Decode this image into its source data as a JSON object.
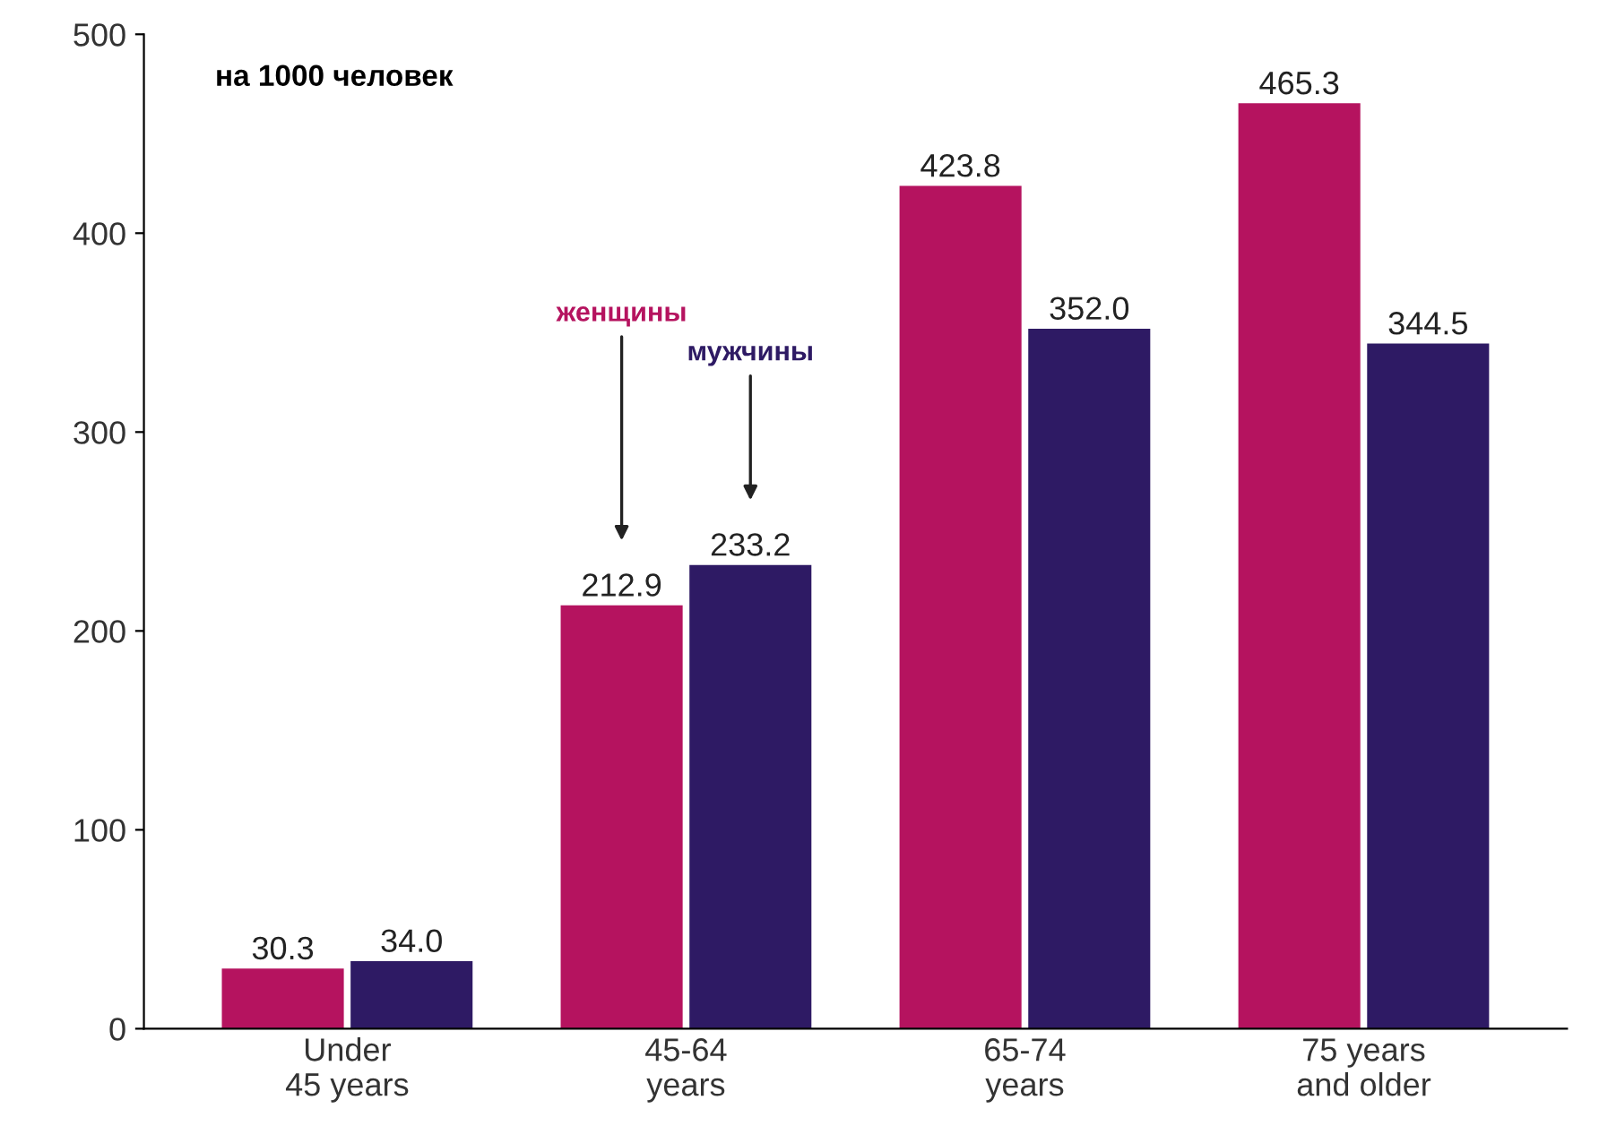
{
  "chart_data": {
    "type": "bar",
    "categories": [
      "Under\n45 years",
      "45-64\nyears",
      "65-74\nyears",
      "75 years\nand older"
    ],
    "series": [
      {
        "name": "женщины",
        "color": "#b5135f",
        "values": [
          30.3,
          212.9,
          423.8,
          465.3
        ],
        "value_labels": [
          "30.3",
          "212.9",
          "423.8",
          "465.3"
        ]
      },
      {
        "name": "мужчины",
        "color": "#2e1a64",
        "values": [
          34.0,
          233.2,
          352.0,
          344.5
        ],
        "value_labels": [
          "34.0",
          "233.2",
          "352.0",
          "344.5"
        ]
      }
    ],
    "ylim": [
      0,
      500
    ],
    "yticks": [
      0,
      100,
      200,
      300,
      400,
      500
    ],
    "grid": false,
    "legend": false,
    "annotations": [
      "на 1000 человек"
    ]
  }
}
